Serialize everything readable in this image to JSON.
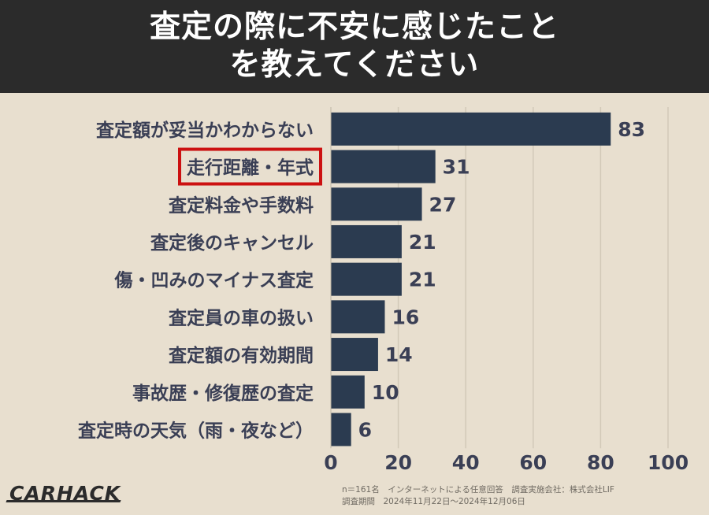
{
  "header": {
    "title_line1": "査定の際に不安に感じたこと",
    "title_line2": "を教えてください"
  },
  "brand": "CARHACK",
  "footnote": {
    "line1": "n＝161名　インターネットによる任意回答　調査実施会社：株式会社LIF",
    "line2": "調査期間　2024年11月22日〜2024年12月06日"
  },
  "colors": {
    "bar": "#2b3b50",
    "highlight_border": "#cc1111",
    "label_text": "#3a3f55",
    "background": "#e8dfcf",
    "header_bg": "#2b2b2b"
  },
  "chart_data": {
    "type": "bar",
    "orientation": "horizontal",
    "categories": [
      "査定額が妥当かわからない",
      "走行距離・年式",
      "査定料金や手数料",
      "査定後のキャンセル",
      "傷・凹みのマイナス査定",
      "査定員の車の扱い",
      "査定額の有効期間",
      "事故歴・修復歴の査定",
      "査定時の天気（雨・夜など）"
    ],
    "values": [
      83,
      31,
      27,
      21,
      21,
      16,
      14,
      10,
      6
    ],
    "highlighted_category": "走行距離・年式",
    "xlim": [
      0,
      100
    ],
    "xticks": [
      0,
      20,
      40,
      60,
      80,
      100
    ],
    "grid": true
  }
}
